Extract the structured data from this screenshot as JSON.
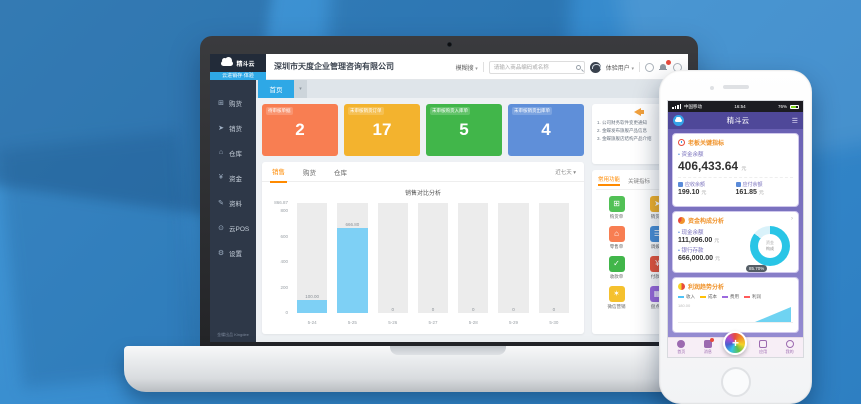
{
  "colors": {
    "accent_blue": "#2ea8e6",
    "accent_orange": "#ff8a00",
    "bar_blue": "#7ed0f5",
    "phone_purple": "#6a61b4",
    "badge_red": "#e8493c"
  },
  "topbar": {
    "logo_text": "精斗云",
    "logo_sub": "云进销存·体验",
    "company": "深圳市天度企业管理咨询有限公司",
    "search_filter": "模糊搜",
    "search_placeholder": "请输入商品编码或名称",
    "user": "体验用户"
  },
  "tabstrip": {
    "home_tab": "首页",
    "caret": "▾"
  },
  "sidebar": {
    "items": [
      {
        "label": "购货",
        "glyph": "⊞"
      },
      {
        "label": "销货",
        "glyph": "➤"
      },
      {
        "label": "仓库",
        "glyph": "⌂"
      },
      {
        "label": "资金",
        "glyph": "¥"
      },
      {
        "label": "资料",
        "glyph": "✎"
      },
      {
        "label": "云POS",
        "glyph": "⊙"
      },
      {
        "label": "设置",
        "glyph": "⚙"
      }
    ],
    "footer": "金蝶出品 Kingdee"
  },
  "stats": [
    {
      "label": "待审核单据",
      "value": "2",
      "color": "#f87e52"
    },
    {
      "label": "未审核销货订单",
      "value": "17",
      "color": "#f3b32e"
    },
    {
      "label": "未审核购货入库单",
      "value": "5",
      "color": "#41b64a"
    },
    {
      "label": "未审核销货出库单",
      "value": "4",
      "color": "#5f8fd9"
    }
  ],
  "announcements": {
    "lines": [
      "1. 公司财务软件变更通知",
      "2. 金蝶发布旗舰产品信息",
      "3. 金蝶旗舰店结构产品介绍"
    ]
  },
  "quick_panel": {
    "tabs": [
      "常用功能",
      "关键指标"
    ],
    "items": [
      {
        "label": "购货单",
        "color": "#52c156",
        "glyph": "⊞"
      },
      {
        "label": "销货单",
        "color": "#f3b32e",
        "glyph": "➤"
      },
      {
        "label": "零售单",
        "color": "#f87e52",
        "glyph": "⌂"
      },
      {
        "label": "调拨单",
        "color": "#4a90d9",
        "glyph": "☰"
      },
      {
        "label": "收款单",
        "color": "#41b64a",
        "glyph": "✓"
      },
      {
        "label": "付款单",
        "color": "#e8563f",
        "glyph": "¥"
      },
      {
        "label": "微信营销",
        "color": "#f5c12e",
        "glyph": "✶"
      },
      {
        "label": "盘点单",
        "color": "#9b6ade",
        "glyph": "▦"
      }
    ]
  },
  "chart_card": {
    "tabs": [
      "销售",
      "购货",
      "仓库"
    ],
    "active_tab": "销售",
    "period": "近七天 ▾"
  },
  "chart_data": [
    {
      "type": "bar",
      "title": "销售对比分析",
      "categories": [
        "5-24",
        "5-25",
        "5-26",
        "5-27",
        "5-28",
        "5-29",
        "5-30"
      ],
      "values": [
        100.0,
        666.8,
        0,
        0,
        0,
        0,
        0
      ],
      "value_labels": [
        "100.00",
        "666.80",
        "0",
        "0",
        "0",
        "0",
        "0"
      ],
      "ylim": [
        0,
        866.87
      ],
      "ytick_values": [
        866.87,
        800,
        600,
        400,
        200,
        0
      ],
      "ytick_labels": [
        "866.87",
        "800",
        "600",
        "400",
        "200",
        "0"
      ],
      "bar_color": "#7ed0f5",
      "track_color": "#ececec",
      "grid": false,
      "xlabel": "",
      "ylabel": ""
    },
    {
      "type": "pie",
      "title": "资金构成分析",
      "series": [
        {
          "name": "银行存款",
          "value": 666000.0,
          "color": "#29c5e6"
        },
        {
          "name": "现金余额",
          "value": 111096.0,
          "color": "#d9f2fa"
        }
      ],
      "badge": "85.70%",
      "center_l1": "资金",
      "center_l2": "构成"
    },
    {
      "type": "line",
      "title": "利润趋势分析",
      "legend": [
        {
          "name": "收入",
          "color": "#4fc3f7"
        },
        {
          "name": "成本",
          "color": "#ffc107"
        },
        {
          "name": "费用",
          "color": "#9c6ade"
        },
        {
          "name": "利润",
          "color": "#ff5a5a"
        }
      ],
      "ytick": "180.00"
    }
  ],
  "phone": {
    "status": {
      "carrier": "中国移动",
      "time": "16:54",
      "battery": "76%"
    },
    "nav": {
      "title": "精斗云",
      "menu": "☰"
    },
    "card1": {
      "title": "老板关键指标",
      "balance_label": "资金余额",
      "balance": "406,433.64",
      "unit": "元",
      "col1": {
        "label": "应收余额",
        "value": "199.10",
        "unit": "元"
      },
      "col2": {
        "label": "应付余额",
        "value": "161.85",
        "unit": "元"
      }
    },
    "card2": {
      "title": "资金构成分析",
      "arrow": "›",
      "row1": {
        "label": "现金余额",
        "value": "111,096.00",
        "unit": "元"
      },
      "row2": {
        "label": "银行存款",
        "value": "666,000.00",
        "unit": "元"
      }
    },
    "card3": {
      "title": "利润趋势分析"
    },
    "tabbar": {
      "items": [
        "首页",
        "消息",
        "应用",
        "我的"
      ],
      "plus": "+"
    }
  }
}
